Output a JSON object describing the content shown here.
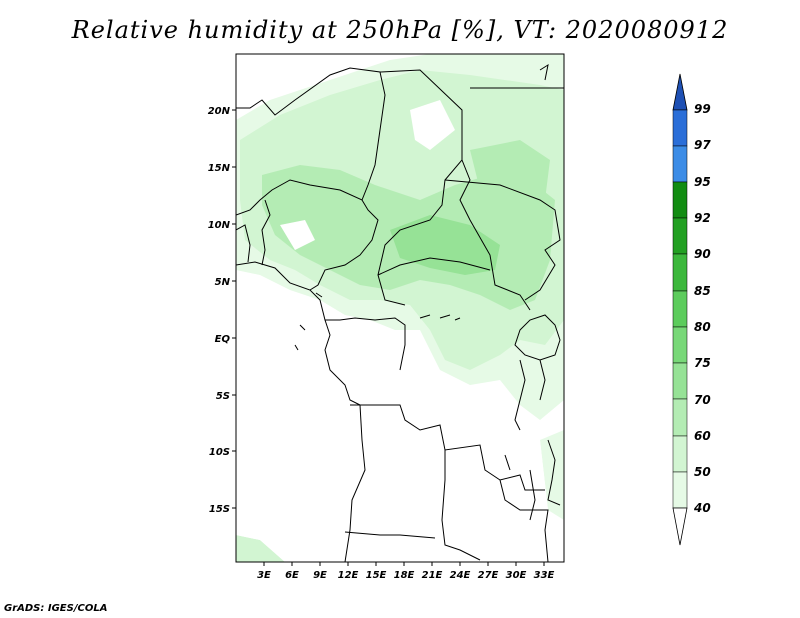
{
  "title": "Relative humidity at 250hPa [%], VT: 2020080912",
  "footer": "GrADS: IGES/COLA",
  "map": {
    "lat_labels": [
      "20N",
      "15N",
      "10N",
      "5N",
      "EQ",
      "5S",
      "10S",
      "15S"
    ],
    "lon_labels": [
      "3E",
      "6E",
      "9E",
      "12E",
      "15E",
      "18E",
      "21E",
      "24E",
      "27E",
      "30E",
      "33E"
    ]
  },
  "colorbar": {
    "levels": [
      "99",
      "97",
      "95",
      "92",
      "90",
      "85",
      "80",
      "75",
      "70",
      "60",
      "50",
      "40"
    ],
    "colors": {
      "c40_50": "#e6fae6",
      "c50_60": "#d2f5d2",
      "c60_70": "#b4ecb4",
      "c70_75": "#96e296",
      "c75_80": "#78d878",
      "c80_85": "#5ccc5c",
      "c85_90": "#3cb83c",
      "c90_92": "#22a022",
      "c92_95": "#128c12",
      "c95_97": "#3c8ce6",
      "c97_99": "#2a6ed8",
      "c99_up": "#1e50b4"
    }
  }
}
